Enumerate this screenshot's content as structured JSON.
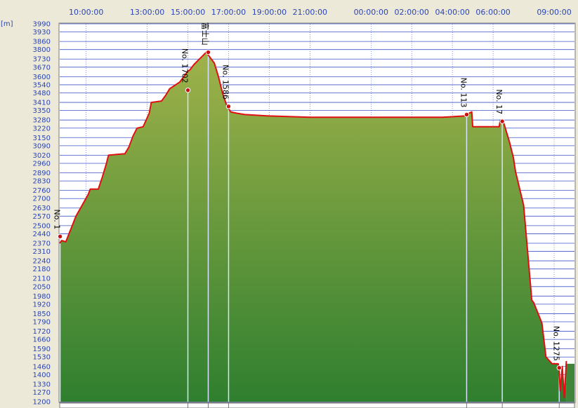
{
  "chart_data": {
    "type": "area",
    "y_unit": "[m]",
    "ylim": [
      1200,
      3990
    ],
    "y_ticks": [
      1200,
      1270,
      1330,
      1400,
      1460,
      1530,
      1590,
      1660,
      1720,
      1790,
      1850,
      1920,
      1980,
      2050,
      2110,
      2180,
      2240,
      2310,
      2370,
      2440,
      2500,
      2570,
      2630,
      2700,
      2760,
      2830,
      2890,
      2960,
      3020,
      3090,
      3150,
      3220,
      3280,
      3350,
      3410,
      3480,
      3540,
      3600,
      3670,
      3730,
      3800,
      3860,
      3930,
      3990
    ],
    "x_ticks": [
      "10:00:00",
      "13:00:00",
      "15:00:00",
      "17:00:00",
      "19:00:00",
      "21:00:00",
      "00:00:00",
      "02:00:00",
      "04:00:00",
      "06:00:00",
      "09:00:00"
    ],
    "x_tick_hours": [
      10,
      13,
      15,
      17,
      19,
      21,
      24,
      26,
      28,
      30,
      33
    ],
    "xlim_hours": [
      8.7,
      34.0
    ],
    "grid": true,
    "fill_color": "#7f9f3f",
    "line_color": "#e01010",
    "series": [
      {
        "t": [
          8.7,
          8.8,
          9.0,
          9.5,
          9.8,
          10.1,
          10.2,
          10.6,
          10.8,
          11.0,
          11.1,
          11.8,
          11.9,
          12.1,
          12.3,
          12.5,
          12.8,
          13.1,
          13.2,
          13.7,
          13.9,
          14.1,
          14.6,
          14.8,
          15.0,
          15.1,
          15.3,
          15.5,
          15.7,
          15.9,
          16.1,
          16.3,
          16.5,
          16.7,
          16.9,
          17.1,
          17.4,
          17.8,
          19.0,
          21.0,
          24.0,
          27.5,
          28.6,
          28.7,
          28.95,
          29.0,
          29.6,
          30.3,
          30.35,
          30.5,
          30.8,
          31.0,
          31.1,
          31.5,
          31.7,
          31.9,
          32.0,
          32.4,
          32.6,
          32.9,
          33.1,
          33.2,
          33.25,
          33.3,
          33.4,
          33.5,
          33.6
        ],
        "y": [
          2370,
          2390,
          2380,
          2570,
          2650,
          2730,
          2770,
          2770,
          2860,
          2960,
          3020,
          3030,
          3030,
          3080,
          3160,
          3220,
          3230,
          3330,
          3410,
          3420,
          3460,
          3510,
          3560,
          3600,
          3640,
          3650,
          3690,
          3720,
          3750,
          3780,
          3740,
          3700,
          3600,
          3480,
          3390,
          3340,
          3330,
          3320,
          3310,
          3300,
          3300,
          3300,
          3310,
          3320,
          3340,
          3230,
          3230,
          3230,
          3280,
          3270,
          3120,
          3000,
          2900,
          2650,
          2300,
          1950,
          1930,
          1780,
          1530,
          1480,
          1480,
          1480,
          1420,
          1280,
          1460,
          1230,
          1500
        ]
      }
    ],
    "waypoints": [
      {
        "label": "No. 1",
        "t": 8.72,
        "y": 2420
      },
      {
        "label": "No. 1702",
        "t": 15.0,
        "y": 3500
      },
      {
        "label": "富士山",
        "t": 16.0,
        "y": 3780
      },
      {
        "label": "No. 1586",
        "t": 17.0,
        "y": 3380
      },
      {
        "label": "No. 113",
        "t": 28.7,
        "y": 3320
      },
      {
        "label": "No. 17",
        "t": 30.45,
        "y": 3270
      },
      {
        "label": "No. 1275",
        "t": 33.25,
        "y": 1450
      }
    ]
  }
}
